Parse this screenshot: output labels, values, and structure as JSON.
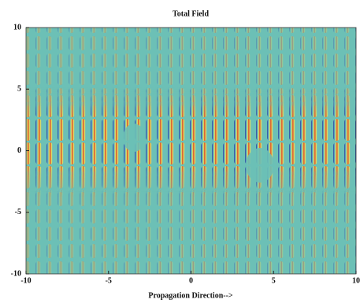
{
  "chart_data": {
    "type": "heatmap",
    "title": "Total Field",
    "xlabel": "Propagation Direction-->",
    "xlim": [
      -10,
      10
    ],
    "ylim": [
      -10,
      10
    ],
    "xticks": [
      -10,
      -5,
      0,
      5,
      10
    ],
    "yticks": [
      -10,
      -5,
      0,
      5,
      10
    ]
  }
}
